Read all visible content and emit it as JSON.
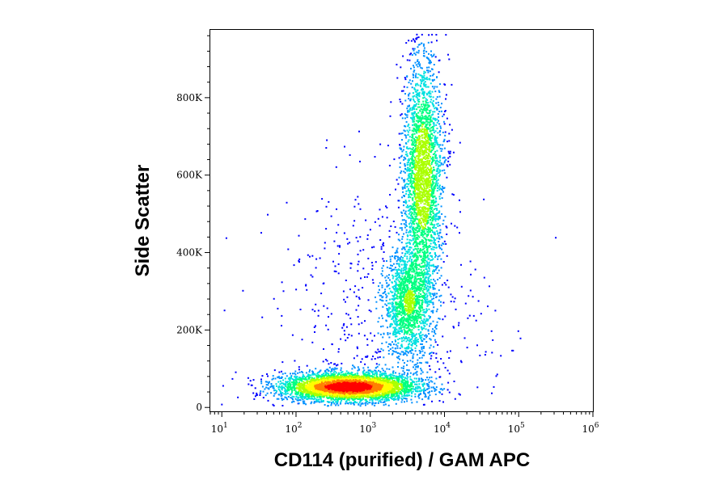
{
  "chart_data": {
    "type": "scatter",
    "subtype": "flow-cytometry-density-dot-plot",
    "title": "",
    "xlabel": "CD114 (purified) / GAM APC",
    "ylabel": "Side Scatter",
    "x_scale": "log",
    "xlim": [
      7,
      1000000
    ],
    "ylim": [
      -10000,
      975000
    ],
    "x_ticks": [
      {
        "value": 10,
        "base": "10",
        "exp": "1"
      },
      {
        "value": 100,
        "base": "10",
        "exp": "2"
      },
      {
        "value": 1000,
        "base": "10",
        "exp": "3"
      },
      {
        "value": 10000,
        "base": "10",
        "exp": "4"
      },
      {
        "value": 100000,
        "base": "10",
        "exp": "5"
      },
      {
        "value": 1000000,
        "base": "10",
        "exp": "6"
      }
    ],
    "y_ticks": [
      {
        "value": 0,
        "label": "0"
      },
      {
        "value": 200000,
        "label": "200K"
      },
      {
        "value": 400000,
        "label": "400K"
      },
      {
        "value": 600000,
        "label": "600K"
      },
      {
        "value": 800000,
        "label": "800K"
      }
    ],
    "density_colors": [
      "#0000ff",
      "#0090ff",
      "#00e0e0",
      "#00ff80",
      "#aaff00",
      "#ffff00",
      "#ff8000",
      "#ff0000"
    ],
    "populations": [
      {
        "name": "negative",
        "center_x": 500,
        "center_y": 55000,
        "spread_log_x": 0.45,
        "spread_y": 18000,
        "peak_density": 1.0
      },
      {
        "name": "granulocytes-upper",
        "center_x": 5000,
        "center_y": 600000,
        "spread_log_x": 0.13,
        "spread_y": 150000,
        "peak_density": 0.42
      },
      {
        "name": "granulocytes-lower",
        "center_x": 3200,
        "center_y": 270000,
        "spread_log_x": 0.16,
        "spread_y": 70000,
        "peak_density": 0.28
      },
      {
        "name": "scatter-background",
        "center_x": 1500,
        "center_y": 200000,
        "spread_log_x": 0.7,
        "spread_y": 200000,
        "peak_density": 0.02
      }
    ]
  }
}
